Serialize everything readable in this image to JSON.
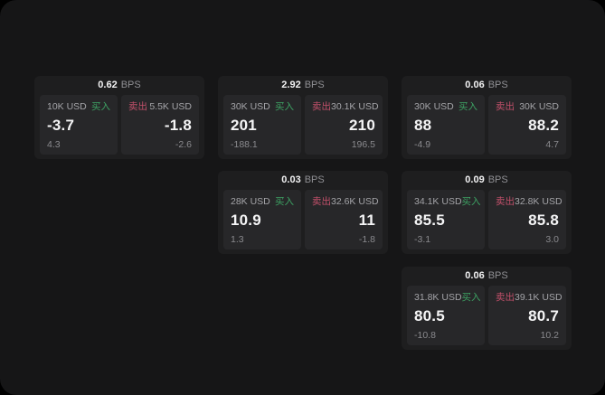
{
  "labels": {
    "buy": "买入",
    "sell": "卖出",
    "unit": "BPS"
  },
  "colors": {
    "buy": "#3da263",
    "sell": "#c2506a",
    "page_bg": "#161617",
    "card_bg": "#1e1e1f",
    "panel_bg": "#272729"
  },
  "cards": [
    {
      "bps": "0.62",
      "buy": {
        "amount": "10K USD",
        "price": "-3.7",
        "delta": "4.3"
      },
      "sell": {
        "amount": "5.5K USD",
        "price": "-1.8",
        "delta": "-2.6"
      }
    },
    {
      "bps": "2.92",
      "buy": {
        "amount": "30K USD",
        "price": "201",
        "delta": "-188.1"
      },
      "sell": {
        "amount": "30.1K USD",
        "price": "210",
        "delta": "196.5"
      }
    },
    {
      "bps": "0.06",
      "buy": {
        "amount": "30K USD",
        "price": "88",
        "delta": "-4.9"
      },
      "sell": {
        "amount": "30K USD",
        "price": "88.2",
        "delta": "4.7"
      }
    },
    {
      "bps": "0.03",
      "buy": {
        "amount": "28K USD",
        "price": "10.9",
        "delta": "1.3"
      },
      "sell": {
        "amount": "32.6K USD",
        "price": "11",
        "delta": "-1.8"
      }
    },
    {
      "bps": "0.09",
      "buy": {
        "amount": "34.1K USD",
        "price": "85.5",
        "delta": "-3.1"
      },
      "sell": {
        "amount": "32.8K USD",
        "price": "85.8",
        "delta": "3.0"
      }
    },
    {
      "bps": "0.06",
      "buy": {
        "amount": "31.8K USD",
        "price": "80.5",
        "delta": "-10.8"
      },
      "sell": {
        "amount": "39.1K USD",
        "price": "80.7",
        "delta": "10.2"
      }
    }
  ]
}
